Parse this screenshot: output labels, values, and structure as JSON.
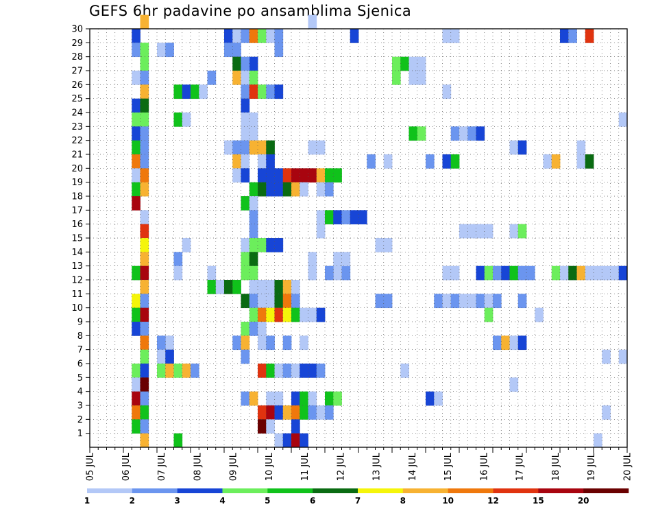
{
  "chart_data": {
    "type": "heatmap",
    "title": "GEFS 6hr padavine po ansamblima Sjenica",
    "x_tick_labels": [
      "05 JUL",
      "06 JUL",
      "07 JUL",
      "08 JUL",
      "09 JUL",
      "10 JUL",
      "11 JUL",
      "12 JUL",
      "13 JUL",
      "14 JUL",
      "15 JUL",
      "16 JUL",
      "17 JUL",
      "18 JUL",
      "19 JUL",
      "20 JUL"
    ],
    "y_tick_labels": [
      "1",
      "2",
      "3",
      "4",
      "5",
      "6",
      "7",
      "8",
      "9",
      "10",
      "11",
      "12",
      "13",
      "14",
      "15",
      "16",
      "17",
      "18",
      "19",
      "20",
      "21",
      "22",
      "23",
      "24",
      "25",
      "26",
      "27",
      "28",
      "29",
      "30"
    ],
    "y_range": [
      0,
      30
    ],
    "grid": true,
    "colorbar": {
      "labels": [
        "1",
        "2",
        "3",
        "4",
        "5",
        "6",
        "7",
        "8",
        "10",
        "12",
        "15",
        "20"
      ],
      "colors": [
        "#b3c8f7",
        "#6b95ef",
        "#1745d6",
        "#6cee5c",
        "#10c21b",
        "#0a6b12",
        "#f5f50a",
        "#f7b232",
        "#ef780c",
        "#e0330f",
        "#a8040f",
        "#6a0000"
      ]
    },
    "cells": [
      [
        6,
        30,
        "#f7b232"
      ],
      [
        5,
        29,
        "#1745d6"
      ],
      [
        5,
        28,
        "#6b95ef"
      ],
      [
        6,
        28,
        "#6cee5c"
      ],
      [
        8,
        28,
        "#b3c8f7"
      ],
      [
        9,
        28,
        "#6b95ef"
      ],
      [
        6,
        27,
        "#6cee5c"
      ],
      [
        5,
        26,
        "#b3c8f7"
      ],
      [
        6,
        26,
        "#6b95ef"
      ],
      [
        6,
        25,
        "#f7b232"
      ],
      [
        5,
        24,
        "#1745d6"
      ],
      [
        6,
        24,
        "#0a6b12"
      ],
      [
        5,
        23,
        "#6cee5c"
      ],
      [
        6,
        23,
        "#6cee5c"
      ],
      [
        5,
        22,
        "#1745d6"
      ],
      [
        6,
        22,
        "#6b95ef"
      ],
      [
        5,
        21,
        "#10c21b"
      ],
      [
        6,
        21,
        "#6b95ef"
      ],
      [
        5,
        20,
        "#ef780c"
      ],
      [
        6,
        20,
        "#6b95ef"
      ],
      [
        5,
        19,
        "#b3c8f7"
      ],
      [
        6,
        19,
        "#ef780c"
      ],
      [
        5,
        18,
        "#10c21b"
      ],
      [
        6,
        18,
        "#f7b232"
      ],
      [
        5,
        17,
        "#a8040f"
      ],
      [
        6,
        16,
        "#b3c8f7"
      ],
      [
        6,
        15,
        "#e0330f"
      ],
      [
        6,
        14,
        "#f5f50a"
      ],
      [
        6,
        13,
        "#f7b232"
      ],
      [
        5,
        12,
        "#10c21b"
      ],
      [
        6,
        12,
        "#a8040f"
      ],
      [
        6,
        11,
        "#f7b232"
      ],
      [
        5,
        10,
        "#f5f50a"
      ],
      [
        6,
        10,
        "#6b95ef"
      ],
      [
        5,
        9,
        "#10c21b"
      ],
      [
        6,
        9,
        "#a8040f"
      ],
      [
        5,
        8,
        "#1745d6"
      ],
      [
        6,
        8,
        "#6b95ef"
      ],
      [
        6,
        7,
        "#ef780c"
      ],
      [
        6,
        6,
        "#6cee5c"
      ],
      [
        5,
        5,
        "#6cee5c"
      ],
      [
        6,
        5,
        "#1745d6"
      ],
      [
        5,
        4,
        "#b3c8f7"
      ],
      [
        6,
        4,
        "#6a0000"
      ],
      [
        5,
        3,
        "#a8040f"
      ],
      [
        6,
        3,
        "#6b95ef"
      ],
      [
        5,
        2,
        "#ef780c"
      ],
      [
        6,
        2,
        "#10c21b"
      ],
      [
        5,
        1,
        "#10c21b"
      ],
      [
        6,
        1,
        "#6b95ef"
      ],
      [
        6,
        0,
        "#f7b232"
      ],
      [
        9,
        7,
        "#b3c8f7"
      ],
      [
        8,
        7,
        "#6b95ef"
      ],
      [
        10,
        25,
        "#10c21b"
      ],
      [
        11,
        25,
        "#1745d6"
      ],
      [
        12,
        25,
        "#10c21b"
      ],
      [
        13,
        25,
        "#b3c8f7"
      ],
      [
        10,
        23,
        "#10c21b"
      ],
      [
        11,
        23,
        "#b3c8f7"
      ],
      [
        11,
        14,
        "#b3c8f7"
      ],
      [
        10,
        13,
        "#6b95ef"
      ],
      [
        10,
        12,
        "#b3c8f7"
      ],
      [
        8,
        6,
        "#b3c8f7"
      ],
      [
        9,
        6,
        "#1745d6"
      ],
      [
        8,
        5,
        "#6cee5c"
      ],
      [
        9,
        5,
        "#f7b232"
      ],
      [
        10,
        5,
        "#6cee5c"
      ],
      [
        11,
        5,
        "#f7b232"
      ],
      [
        12,
        5,
        "#6b95ef"
      ],
      [
        10,
        0,
        "#10c21b"
      ],
      [
        14,
        12,
        "#b3c8f7"
      ],
      [
        14,
        11,
        "#10c21b"
      ],
      [
        15,
        11,
        "#b3c8f7"
      ],
      [
        16,
        11,
        "#0a6b12"
      ],
      [
        17,
        11,
        "#10c21b"
      ],
      [
        16,
        29,
        "#1745d6"
      ],
      [
        17,
        29,
        "#b3c8f7"
      ],
      [
        18,
        29,
        "#6b95ef"
      ],
      [
        19,
        29,
        "#ef780c"
      ],
      [
        20,
        29,
        "#6cee5c"
      ],
      [
        21,
        29,
        "#b3c8f7"
      ],
      [
        22,
        29,
        "#6b95ef"
      ],
      [
        17,
        28,
        "#6b95ef"
      ],
      [
        22,
        28,
        "#6b95ef"
      ],
      [
        16,
        28,
        "#6b95ef"
      ],
      [
        17,
        27,
        "#0a6b12"
      ],
      [
        19,
        27,
        "#1745d6"
      ],
      [
        18,
        27,
        "#6b95ef"
      ],
      [
        17,
        26,
        "#f7b232"
      ],
      [
        18,
        26,
        "#b3c8f7"
      ],
      [
        19,
        26,
        "#6cee5c"
      ],
      [
        14,
        26,
        "#6b95ef"
      ],
      [
        18,
        25,
        "#6b95ef"
      ],
      [
        19,
        25,
        "#e0330f"
      ],
      [
        20,
        25,
        "#6cee5c"
      ],
      [
        21,
        25,
        "#6b95ef"
      ],
      [
        22,
        25,
        "#1745d6"
      ],
      [
        18,
        24,
        "#1745d6"
      ],
      [
        18,
        23,
        "#b3c8f7"
      ],
      [
        19,
        23,
        "#b3c8f7"
      ],
      [
        18,
        22,
        "#b3c8f7"
      ],
      [
        19,
        22,
        "#b3c8f7"
      ],
      [
        16,
        21,
        "#b3c8f7"
      ],
      [
        17,
        21,
        "#6b95ef"
      ],
      [
        18,
        21,
        "#6b95ef"
      ],
      [
        19,
        21,
        "#f7b232"
      ],
      [
        20,
        21,
        "#f7b232"
      ],
      [
        21,
        21,
        "#0a6b12"
      ],
      [
        17,
        20,
        "#f7b232"
      ],
      [
        18,
        20,
        "#b3c8f7"
      ],
      [
        20,
        20,
        "#b3c8f7"
      ],
      [
        21,
        20,
        "#1745d6"
      ],
      [
        17,
        19,
        "#b3c8f7"
      ],
      [
        18,
        19,
        "#1745d6"
      ],
      [
        20,
        19,
        "#1745d6"
      ],
      [
        21,
        19,
        "#1745d6"
      ],
      [
        22,
        19,
        "#1745d6"
      ],
      [
        23,
        19,
        "#e0330f"
      ],
      [
        24,
        19,
        "#a8040f"
      ],
      [
        25,
        19,
        "#a8040f"
      ],
      [
        26,
        19,
        "#a8040f"
      ],
      [
        27,
        19,
        "#f7b232"
      ],
      [
        28,
        19,
        "#10c21b"
      ],
      [
        29,
        19,
        "#10c21b"
      ],
      [
        19,
        18,
        "#10c21b"
      ],
      [
        20,
        18,
        "#0a6b12"
      ],
      [
        21,
        18,
        "#1745d6"
      ],
      [
        22,
        18,
        "#1745d6"
      ],
      [
        23,
        18,
        "#0a6b12"
      ],
      [
        24,
        18,
        "#f7b232"
      ],
      [
        25,
        18,
        "#b3c8f7"
      ],
      [
        18,
        17,
        "#10c21b"
      ],
      [
        19,
        17,
        "#b3c8f7"
      ],
      [
        19,
        16,
        "#6b95ef"
      ],
      [
        19,
        15,
        "#6b95ef"
      ],
      [
        18,
        14,
        "#b3c8f7"
      ],
      [
        19,
        14,
        "#6cee5c"
      ],
      [
        20,
        14,
        "#6cee5c"
      ],
      [
        21,
        14,
        "#1745d6"
      ],
      [
        22,
        14,
        "#1745d6"
      ],
      [
        18,
        13,
        "#6cee5c"
      ],
      [
        19,
        13,
        "#0a6b12"
      ],
      [
        18,
        12,
        "#6cee5c"
      ],
      [
        19,
        12,
        "#6cee5c"
      ],
      [
        19,
        11,
        "#b3c8f7"
      ],
      [
        20,
        11,
        "#b3c8f7"
      ],
      [
        21,
        11,
        "#b3c8f7"
      ],
      [
        22,
        11,
        "#0a6b12"
      ],
      [
        23,
        11,
        "#f7b232"
      ],
      [
        24,
        11,
        "#b3c8f7"
      ],
      [
        18,
        10,
        "#0a6b12"
      ],
      [
        19,
        10,
        "#6b95ef"
      ],
      [
        20,
        10,
        "#b3c8f7"
      ],
      [
        21,
        10,
        "#b3c8f7"
      ],
      [
        22,
        10,
        "#0a6b12"
      ],
      [
        23,
        10,
        "#ef780c"
      ],
      [
        24,
        10,
        "#6b95ef"
      ],
      [
        19,
        9,
        "#6cee5c"
      ],
      [
        20,
        9,
        "#ef780c"
      ],
      [
        21,
        9,
        "#f5f50a"
      ],
      [
        22,
        9,
        "#e0330f"
      ],
      [
        23,
        9,
        "#f5f50a"
      ],
      [
        24,
        9,
        "#10c21b"
      ],
      [
        25,
        9,
        "#b3c8f7"
      ],
      [
        26,
        9,
        "#b3c8f7"
      ],
      [
        27,
        9,
        "#1745d6"
      ],
      [
        18,
        8,
        "#6cee5c"
      ],
      [
        19,
        8,
        "#6b95ef"
      ],
      [
        20,
        8,
        "#b3c8f7"
      ],
      [
        17,
        7,
        "#6b95ef"
      ],
      [
        18,
        7,
        "#f7b232"
      ],
      [
        20,
        7,
        "#b3c8f7"
      ],
      [
        21,
        7,
        "#6b95ef"
      ],
      [
        23,
        7,
        "#6b95ef"
      ],
      [
        25,
        7,
        "#b3c8f7"
      ],
      [
        18,
        6,
        "#6b95ef"
      ],
      [
        20,
        5,
        "#e0330f"
      ],
      [
        21,
        5,
        "#10c21b"
      ],
      [
        22,
        5,
        "#b3c8f7"
      ],
      [
        23,
        5,
        "#6b95ef"
      ],
      [
        24,
        5,
        "#b3c8f7"
      ],
      [
        25,
        5,
        "#1745d6"
      ],
      [
        26,
        5,
        "#1745d6"
      ],
      [
        27,
        5,
        "#6b95ef"
      ],
      [
        18,
        3,
        "#6b95ef"
      ],
      [
        19,
        3,
        "#f7b232"
      ],
      [
        21,
        3,
        "#b3c8f7"
      ],
      [
        22,
        3,
        "#b3c8f7"
      ],
      [
        24,
        3,
        "#1745d6"
      ],
      [
        25,
        3,
        "#10c21b"
      ],
      [
        26,
        3,
        "#b3c8f7"
      ],
      [
        28,
        3,
        "#10c21b"
      ],
      [
        29,
        3,
        "#6cee5c"
      ],
      [
        20,
        2,
        "#e0330f"
      ],
      [
        21,
        2,
        "#a8040f"
      ],
      [
        22,
        2,
        "#1745d6"
      ],
      [
        23,
        2,
        "#f7b232"
      ],
      [
        24,
        2,
        "#ef780c"
      ],
      [
        25,
        2,
        "#10c21b"
      ],
      [
        26,
        2,
        "#6b95ef"
      ],
      [
        27,
        2,
        "#b3c8f7"
      ],
      [
        28,
        2,
        "#6b95ef"
      ],
      [
        20,
        1,
        "#6a0000"
      ],
      [
        21,
        1,
        "#b3c8f7"
      ],
      [
        24,
        1,
        "#1745d6"
      ],
      [
        22,
        0,
        "#b3c8f7"
      ],
      [
        23,
        0,
        "#1745d6"
      ],
      [
        24,
        0,
        "#a8040f"
      ],
      [
        25,
        0,
        "#1745d6"
      ],
      [
        26,
        30,
        "#b3c8f7"
      ],
      [
        26,
        21,
        "#b3c8f7"
      ],
      [
        27,
        21,
        "#b3c8f7"
      ],
      [
        27,
        16,
        "#b3c8f7"
      ],
      [
        28,
        16,
        "#10c21b"
      ],
      [
        27,
        15,
        "#b3c8f7"
      ],
      [
        26,
        12,
        "#b3c8f7"
      ],
      [
        29,
        12,
        "#b3c8f7"
      ],
      [
        30,
        12,
        "#6b95ef"
      ],
      [
        29,
        13,
        "#b3c8f7"
      ],
      [
        30,
        13,
        "#b3c8f7"
      ],
      [
        26,
        13,
        "#b3c8f7"
      ],
      [
        29,
        16,
        "#1745d6"
      ],
      [
        30,
        16,
        "#6b95ef"
      ],
      [
        31,
        16,
        "#1745d6"
      ],
      [
        32,
        16,
        "#1745d6"
      ],
      [
        27,
        18,
        "#b3c8f7"
      ],
      [
        28,
        18,
        "#6b95ef"
      ],
      [
        28,
        12,
        "#6b95ef"
      ],
      [
        31,
        29,
        "#1745d6"
      ],
      [
        33,
        20,
        "#6b95ef"
      ],
      [
        35,
        20,
        "#b3c8f7"
      ],
      [
        34,
        10,
        "#6b95ef"
      ],
      [
        35,
        10,
        "#6b95ef"
      ],
      [
        34,
        14,
        "#b3c8f7"
      ],
      [
        35,
        14,
        "#b3c8f7"
      ],
      [
        36,
        27,
        "#6cee5c"
      ],
      [
        37,
        27,
        "#10c21b"
      ],
      [
        36,
        26,
        "#6cee5c"
      ],
      [
        38,
        27,
        "#b3c8f7"
      ],
      [
        39,
        27,
        "#b3c8f7"
      ],
      [
        38,
        26,
        "#b3c8f7"
      ],
      [
        39,
        26,
        "#b3c8f7"
      ],
      [
        38,
        22,
        "#10c21b"
      ],
      [
        39,
        22,
        "#6cee5c"
      ],
      [
        37,
        5,
        "#b3c8f7"
      ],
      [
        40,
        20,
        "#6b95ef"
      ],
      [
        40,
        3,
        "#1745d6"
      ],
      [
        41,
        3,
        "#b3c8f7"
      ],
      [
        41,
        10,
        "#6b95ef"
      ],
      [
        42,
        10,
        "#b3c8f7"
      ],
      [
        43,
        10,
        "#6b95ef"
      ],
      [
        44,
        10,
        "#b3c8f7"
      ],
      [
        45,
        10,
        "#b3c8f7"
      ],
      [
        46,
        10,
        "#6b95ef"
      ],
      [
        47,
        10,
        "#b3c8f7"
      ],
      [
        42,
        29,
        "#b3c8f7"
      ],
      [
        43,
        29,
        "#b3c8f7"
      ],
      [
        42,
        25,
        "#b3c8f7"
      ],
      [
        42,
        20,
        "#1745d6"
      ],
      [
        43,
        20,
        "#10c21b"
      ],
      [
        43,
        22,
        "#6b95ef"
      ],
      [
        44,
        22,
        "#b3c8f7"
      ],
      [
        45,
        22,
        "#6b95ef"
      ],
      [
        46,
        22,
        "#1745d6"
      ],
      [
        42,
        12,
        "#b3c8f7"
      ],
      [
        43,
        12,
        "#b3c8f7"
      ],
      [
        46,
        12,
        "#1745d6"
      ],
      [
        47,
        12,
        "#6cee5c"
      ],
      [
        48,
        12,
        "#6b95ef"
      ],
      [
        49,
        12,
        "#1745d6"
      ],
      [
        50,
        12,
        "#10c21b"
      ],
      [
        51,
        12,
        "#6b95ef"
      ],
      [
        52,
        12,
        "#6b95ef"
      ],
      [
        44,
        15,
        "#b3c8f7"
      ],
      [
        45,
        15,
        "#b3c8f7"
      ],
      [
        46,
        15,
        "#b3c8f7"
      ],
      [
        47,
        15,
        "#b3c8f7"
      ],
      [
        50,
        15,
        "#b3c8f7"
      ],
      [
        51,
        15,
        "#6cee5c"
      ],
      [
        47,
        9,
        "#6cee5c"
      ],
      [
        48,
        7,
        "#6b95ef"
      ],
      [
        49,
        7,
        "#f7b232"
      ],
      [
        50,
        7,
        "#b3c8f7"
      ],
      [
        51,
        7,
        "#1745d6"
      ],
      [
        50,
        21,
        "#b3c8f7"
      ],
      [
        51,
        21,
        "#1745d6"
      ],
      [
        51,
        10,
        "#6b95ef"
      ],
      [
        48,
        10,
        "#6b95ef"
      ],
      [
        53,
        9,
        "#b3c8f7"
      ],
      [
        50,
        4,
        "#b3c8f7"
      ],
      [
        54,
        20,
        "#b3c8f7"
      ],
      [
        55,
        20,
        "#f7b232"
      ],
      [
        56,
        29,
        "#1745d6"
      ],
      [
        57,
        29,
        "#6b95ef"
      ],
      [
        55,
        12,
        "#6cee5c"
      ],
      [
        56,
        12,
        "#b3c8f7"
      ],
      [
        57,
        12,
        "#0a6b12"
      ],
      [
        58,
        12,
        "#f7b232"
      ],
      [
        59,
        12,
        "#b3c8f7"
      ],
      [
        60,
        12,
        "#b3c8f7"
      ],
      [
        61,
        12,
        "#b3c8f7"
      ],
      [
        62,
        12,
        "#b3c8f7"
      ],
      [
        63,
        12,
        "#1745d6"
      ],
      [
        58,
        21,
        "#b3c8f7"
      ],
      [
        58,
        20,
        "#b3c8f7"
      ],
      [
        59,
        20,
        "#0a6b12"
      ],
      [
        59,
        29,
        "#e0330f"
      ],
      [
        61,
        6,
        "#b3c8f7"
      ],
      [
        63,
        6,
        "#b3c8f7"
      ],
      [
        61,
        2,
        "#b3c8f7"
      ],
      [
        60,
        0,
        "#b3c8f7"
      ],
      [
        63,
        23,
        "#b3c8f7"
      ]
    ]
  }
}
